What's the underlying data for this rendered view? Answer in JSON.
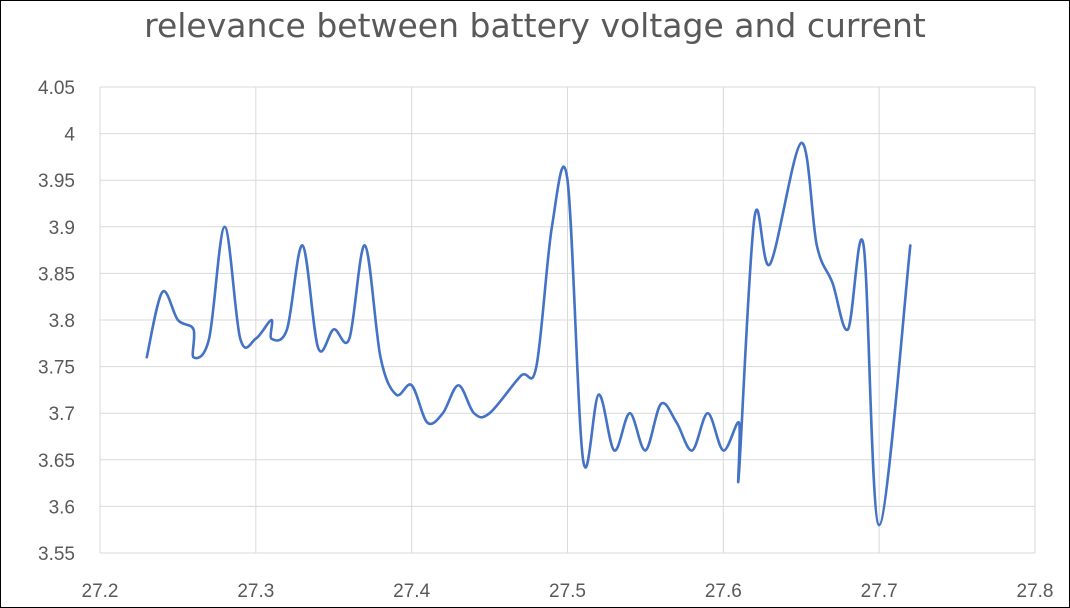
{
  "chart_data": {
    "type": "line",
    "title": "relevance between battery voltage and current",
    "xlabel": "",
    "ylabel": "",
    "xlim": [
      27.2,
      27.8
    ],
    "ylim": [
      3.55,
      4.05
    ],
    "x_ticks": [
      "27.2",
      "27.3",
      "27.4",
      "27.5",
      "27.6",
      "27.7",
      "27.8"
    ],
    "y_ticks": [
      "3.55",
      "3.6",
      "3.65",
      "3.7",
      "3.75",
      "3.8",
      "3.85",
      "3.9",
      "3.95",
      "4",
      "4.05"
    ],
    "grid": true,
    "legend": "none",
    "smooth": true,
    "series": [
      {
        "color": "#4472C4",
        "points": [
          [
            27.23,
            3.76
          ],
          [
            27.24,
            3.83
          ],
          [
            27.25,
            3.8
          ],
          [
            27.26,
            3.79
          ],
          [
            27.26,
            3.76
          ],
          [
            27.27,
            3.78
          ],
          [
            27.28,
            3.9
          ],
          [
            27.29,
            3.78
          ],
          [
            27.3,
            3.78
          ],
          [
            27.31,
            3.8
          ],
          [
            27.31,
            3.78
          ],
          [
            27.32,
            3.79
          ],
          [
            27.33,
            3.88
          ],
          [
            27.34,
            3.77
          ],
          [
            27.35,
            3.79
          ],
          [
            27.36,
            3.78
          ],
          [
            27.37,
            3.88
          ],
          [
            27.38,
            3.76
          ],
          [
            27.39,
            3.72
          ],
          [
            27.4,
            3.73
          ],
          [
            27.41,
            3.69
          ],
          [
            27.42,
            3.7
          ],
          [
            27.43,
            3.73
          ],
          [
            27.44,
            3.7
          ],
          [
            27.45,
            3.7
          ],
          [
            27.47,
            3.74
          ],
          [
            27.48,
            3.75
          ],
          [
            27.49,
            3.9
          ],
          [
            27.5,
            3.95
          ],
          [
            27.51,
            3.65
          ],
          [
            27.52,
            3.72
          ],
          [
            27.53,
            3.66
          ],
          [
            27.54,
            3.7
          ],
          [
            27.55,
            3.66
          ],
          [
            27.56,
            3.71
          ],
          [
            27.57,
            3.69
          ],
          [
            27.58,
            3.66
          ],
          [
            27.59,
            3.7
          ],
          [
            27.6,
            3.66
          ],
          [
            27.61,
            3.69
          ],
          [
            27.61,
            3.635
          ],
          [
            27.62,
            3.91
          ],
          [
            27.63,
            3.86
          ],
          [
            27.65,
            3.99
          ],
          [
            27.66,
            3.88
          ],
          [
            27.67,
            3.84
          ],
          [
            27.68,
            3.79
          ],
          [
            27.69,
            3.88
          ],
          [
            27.7,
            3.58
          ],
          [
            27.72,
            3.88
          ]
        ]
      }
    ]
  }
}
